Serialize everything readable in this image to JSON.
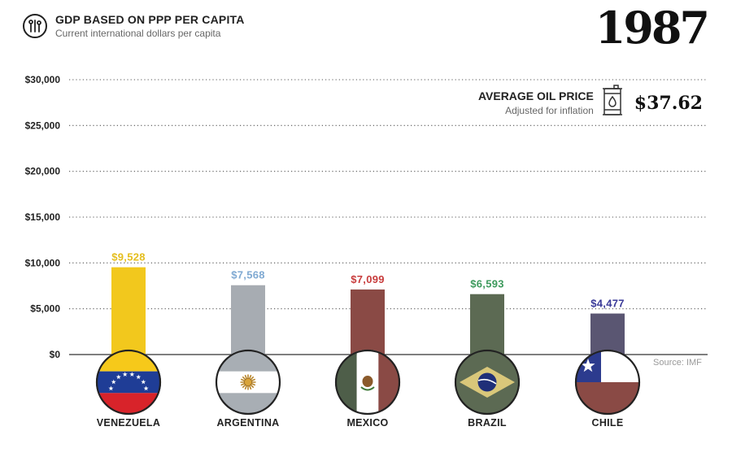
{
  "header": {
    "icon": "tools-icon",
    "title": "GDP BASED ON PPP PER CAPITA",
    "subtitle": "Current international dollars per capita"
  },
  "year": "1987",
  "oil": {
    "title": "AVERAGE OIL PRICE",
    "subtitle": "Adjusted for inflation",
    "icon": "oil-barrel-icon",
    "price": "$37.62"
  },
  "source": "Source: IMF",
  "chart_data": {
    "type": "bar",
    "categories": [
      "VENEZUELA",
      "ARGENTINA",
      "MEXICO",
      "BRAZIL",
      "CHILE"
    ],
    "values": [
      9528,
      7568,
      7099,
      6593,
      4477
    ],
    "value_labels": [
      "$9,528",
      "$7,568",
      "$7,099",
      "$6,593",
      "$4,477"
    ],
    "label_colors": [
      "#e4be1e",
      "#7fa9d2",
      "#c83c3c",
      "#3d9a5c",
      "#3a3a98"
    ],
    "bar_colors": [
      "#f2c81d",
      "#a7acb2",
      "#8a4a45",
      "#5c6a53",
      "#5a5672"
    ],
    "flags": [
      "venezuela-flag-icon",
      "argentina-flag-icon",
      "mexico-flag-icon",
      "brazil-flag-icon",
      "chile-flag-icon"
    ],
    "yticks": [
      {
        "value": 0,
        "label": "$0"
      },
      {
        "value": 5000,
        "label": "$5,000"
      },
      {
        "value": 10000,
        "label": "$10,000"
      },
      {
        "value": 15000,
        "label": "$15,000"
      },
      {
        "value": 20000,
        "label": "$20,000"
      },
      {
        "value": 25000,
        "label": "$25,000"
      },
      {
        "value": 30000,
        "label": "$30,000"
      }
    ],
    "ylim": [
      0,
      30000
    ],
    "grid": true,
    "legend": "none"
  }
}
